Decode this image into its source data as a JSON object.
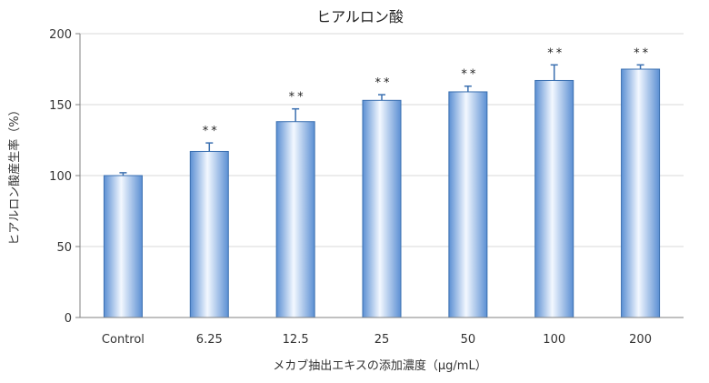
{
  "chart_data": {
    "type": "bar",
    "title": "ヒアルロン酸",
    "xlabel": "メカブ抽出エキスの添加濃度（μg/mL）",
    "ylabel": "ヒアルロン酸産生率（%）",
    "ylim": [
      0,
      200
    ],
    "yticks": [
      "0",
      "50",
      "100",
      "150",
      "200"
    ],
    "grid": true,
    "categories": [
      "Control",
      "6.25",
      "12.5",
      "25",
      "50",
      "100",
      "200"
    ],
    "values": [
      100,
      117,
      138,
      153,
      159,
      167,
      175
    ],
    "errors": [
      2,
      6,
      9,
      4,
      4,
      11,
      3
    ],
    "significance": [
      "",
      "**",
      "**",
      "**",
      "**",
      "**",
      "**"
    ],
    "bar_color": "#6a9fdc",
    "bar_edge_color": "#3a6fb0",
    "grid_color": "#d9d9d9"
  }
}
